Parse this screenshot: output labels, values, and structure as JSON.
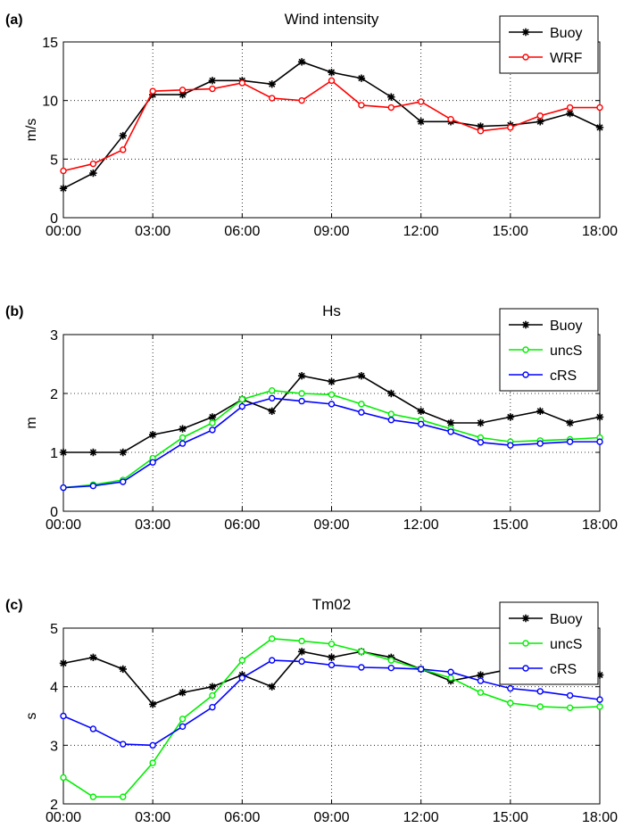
{
  "chart_data": [
    {
      "type": "line",
      "panel_label": "(a)",
      "title": "Wind intensity",
      "ylabel": "m/s",
      "xlabel": "",
      "ylim": [
        0,
        15
      ],
      "yticks": [
        "0",
        "5",
        "10",
        "15"
      ],
      "xticks": [
        "00:00",
        "03:00",
        "06:00",
        "09:00",
        "12:00",
        "15:00",
        "18:00"
      ],
      "x": [
        0,
        1,
        2,
        3,
        4,
        5,
        6,
        7,
        8,
        9,
        10,
        11,
        12,
        13,
        14,
        15,
        16,
        17,
        18
      ],
      "grid": true,
      "legend_position": "top-right",
      "series": [
        {
          "name": "Buoy",
          "color": "#000000",
          "marker": "star",
          "values": [
            2.5,
            3.8,
            7.0,
            10.5,
            10.5,
            11.7,
            11.7,
            11.4,
            13.3,
            12.4,
            11.9,
            10.3,
            8.2,
            8.2,
            7.8,
            7.9,
            8.2,
            8.9,
            7.7
          ]
        },
        {
          "name": "WRF",
          "color": "#ff0000",
          "marker": "circle",
          "values": [
            4.0,
            4.6,
            5.8,
            10.8,
            10.9,
            11.0,
            11.5,
            10.2,
            10.0,
            11.7,
            9.6,
            9.4,
            9.9,
            8.4,
            7.4,
            7.7,
            8.7,
            9.4,
            9.4
          ]
        }
      ]
    },
    {
      "type": "line",
      "panel_label": "(b)",
      "title": "Hs",
      "ylabel": "m",
      "xlabel": "",
      "ylim": [
        0,
        3
      ],
      "yticks": [
        "0",
        "1",
        "2",
        "3"
      ],
      "xticks": [
        "00:00",
        "03:00",
        "06:00",
        "09:00",
        "12:00",
        "15:00",
        "18:00"
      ],
      "x": [
        0,
        1,
        2,
        3,
        4,
        5,
        6,
        7,
        8,
        9,
        10,
        11,
        12,
        13,
        14,
        15,
        16,
        17,
        18
      ],
      "grid": true,
      "legend_position": "top-right",
      "series": [
        {
          "name": "Buoy",
          "color": "#000000",
          "marker": "star",
          "values": [
            1.0,
            1.0,
            1.0,
            1.3,
            1.4,
            1.6,
            1.9,
            1.7,
            2.3,
            2.2,
            2.3,
            2.0,
            1.7,
            1.5,
            1.5,
            1.6,
            1.7,
            1.5,
            1.6
          ]
        },
        {
          "name": "uncS",
          "color": "#00ee00",
          "marker": "circle",
          "values": [
            0.4,
            0.45,
            0.53,
            0.9,
            1.25,
            1.5,
            1.9,
            2.05,
            2.0,
            1.98,
            1.82,
            1.65,
            1.55,
            1.4,
            1.25,
            1.18,
            1.2,
            1.22,
            1.25
          ]
        },
        {
          "name": "cRS",
          "color": "#0000ff",
          "marker": "circle",
          "values": [
            0.4,
            0.43,
            0.5,
            0.83,
            1.15,
            1.38,
            1.78,
            1.92,
            1.87,
            1.82,
            1.68,
            1.55,
            1.48,
            1.35,
            1.17,
            1.12,
            1.15,
            1.18,
            1.18
          ]
        }
      ]
    },
    {
      "type": "line",
      "panel_label": "(c)",
      "title": "Tm02",
      "ylabel": "s",
      "xlabel": "",
      "ylim": [
        2,
        5
      ],
      "yticks": [
        "2",
        "3",
        "4",
        "5"
      ],
      "xticks": [
        "00:00",
        "03:00",
        "06:00",
        "09:00",
        "12:00",
        "15:00",
        "18:00"
      ],
      "x": [
        0,
        1,
        2,
        3,
        4,
        5,
        6,
        7,
        8,
        9,
        10,
        11,
        12,
        13,
        14,
        15,
        16,
        17,
        18
      ],
      "grid": true,
      "legend_position": "top-right",
      "series": [
        {
          "name": "Buoy",
          "color": "#000000",
          "marker": "star",
          "values": [
            4.4,
            4.5,
            4.3,
            3.7,
            3.9,
            4.0,
            4.2,
            4.0,
            4.6,
            4.5,
            4.6,
            4.5,
            4.3,
            4.1,
            4.2,
            4.3,
            4.4,
            4.3,
            4.2
          ]
        },
        {
          "name": "uncS",
          "color": "#00ee00",
          "marker": "circle",
          "values": [
            2.45,
            2.12,
            2.12,
            2.7,
            3.45,
            3.85,
            4.45,
            4.82,
            4.78,
            4.73,
            4.6,
            4.45,
            4.3,
            4.15,
            3.9,
            3.72,
            3.66,
            3.64,
            3.66
          ]
        },
        {
          "name": "cRS",
          "color": "#0000ff",
          "marker": "circle",
          "values": [
            3.5,
            3.28,
            3.02,
            3.0,
            3.32,
            3.65,
            4.15,
            4.45,
            4.43,
            4.37,
            4.33,
            4.32,
            4.3,
            4.25,
            4.1,
            3.97,
            3.92,
            3.85,
            3.78
          ]
        }
      ]
    }
  ]
}
